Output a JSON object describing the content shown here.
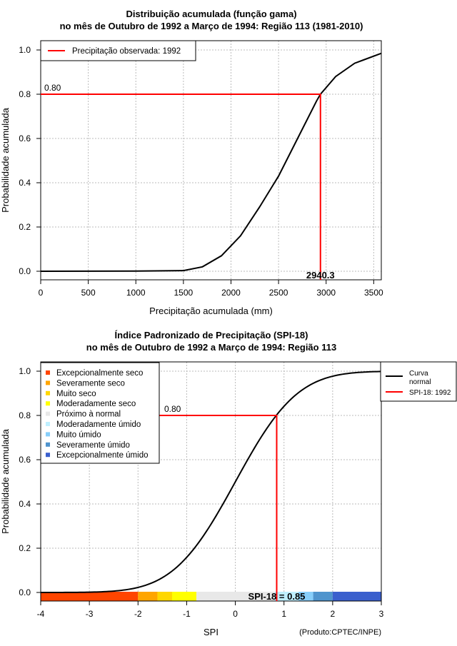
{
  "chart_data": [
    {
      "type": "line",
      "title": [
        "Distribuição acumulada (função gama)",
        "no mês de Outubro de 1992 a Março de 1994: Região 113 (1981-2010)"
      ],
      "xlabel": "Precipitação acumulada (mm)",
      "ylabel": "Probabilidade acumulada",
      "xlim": [
        0,
        3580
      ],
      "ylim": [
        0,
        1
      ],
      "xticks": [
        "0",
        "500",
        "1000",
        "1500",
        "2000",
        "2500",
        "3000",
        "3500"
      ],
      "yticks": [
        "0.0",
        "0.2",
        "0.4",
        "0.6",
        "0.8",
        "1.0"
      ],
      "curve": {
        "x": [
          0,
          1000,
          1500,
          1700,
          1900,
          2100,
          2300,
          2500,
          2700,
          2900,
          2940.3,
          3100,
          3300,
          3580
        ],
        "y": [
          0,
          0.001,
          0.003,
          0.02,
          0.07,
          0.16,
          0.29,
          0.43,
          0.6,
          0.77,
          0.8,
          0.88,
          0.94,
          0.985
        ]
      },
      "observed": {
        "x": 2940.3,
        "y": 0.8,
        "label": "2940.3",
        "ylabel_overlap": "0.80"
      },
      "legend": {
        "position": "top-left",
        "entries": [
          {
            "label": "Precipitação observada: 1992",
            "color": "#ff0000"
          }
        ]
      }
    },
    {
      "type": "line",
      "title": [
        "Índice Padronizado de Precipitação (SPI-18)",
        "no mês de Outubro de 1992 a Março de 1994: Região 113"
      ],
      "xlabel": "SPI",
      "ylabel": "Probabilidade acumulada",
      "xlim": [
        -4,
        3
      ],
      "ylim": [
        0,
        1
      ],
      "xticks": [
        "-4",
        "-3",
        "-2",
        "-1",
        "0",
        "1",
        "2",
        "3"
      ],
      "yticks": [
        "0.0",
        "0.2",
        "0.4",
        "0.6",
        "0.8",
        "1.0"
      ],
      "curve": {
        "type": "normal-cdf",
        "mean": 0,
        "sd": 1
      },
      "observed": {
        "x": 0.85,
        "y": 0.8,
        "label": "SPI-18 = 0.85",
        "ylabel_overlap": "0.80"
      },
      "classes": [
        {
          "label": "Excepcionalmente seco",
          "from": -4,
          "to": -2,
          "color": "#ff4500"
        },
        {
          "label": "Severamente seco",
          "from": -2,
          "to": -1.6,
          "color": "#ffa500"
        },
        {
          "label": "Muito seco",
          "from": -1.6,
          "to": -1.3,
          "color": "#ffd700"
        },
        {
          "label": "Moderadamente seco",
          "from": -1.3,
          "to": -0.8,
          "color": "#ffff00"
        },
        {
          "label": "Próximo à normal",
          "from": -0.8,
          "to": 0.8,
          "color": "#e8e8e8"
        },
        {
          "label": "Moderadamente úmido",
          "from": 0.8,
          "to": 1.3,
          "color": "#bfefff"
        },
        {
          "label": "Muito úmido",
          "from": 1.3,
          "to": 1.6,
          "color": "#87cefa"
        },
        {
          "label": "Severamente úmido",
          "from": 1.6,
          "to": 2,
          "color": "#4f94cd"
        },
        {
          "label": "Excepcionalmente úmido",
          "from": 2,
          "to": 3,
          "color": "#3a5fcd"
        }
      ],
      "legend_right": [
        {
          "label": "Curva normal",
          "lines": [
            "Curva",
            "normal"
          ],
          "color": "#000000"
        },
        {
          "label": "SPI-18: 1992",
          "color": "#ff0000"
        }
      ],
      "credit": "(Produto:CPTEC/INPE)"
    }
  ]
}
